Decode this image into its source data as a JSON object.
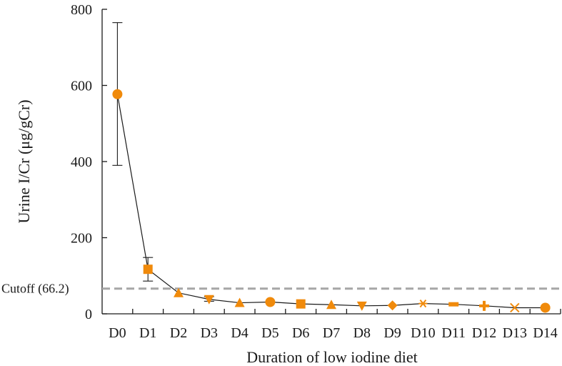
{
  "chart_data": {
    "type": "line",
    "xlabel": "Duration of low iodine diet",
    "ylabel": "Urine I/Cr (μg/gCr)",
    "ylim": [
      0,
      800
    ],
    "yticks": [
      "0",
      "200",
      "400",
      "600",
      "800"
    ],
    "categories": [
      "D0",
      "D1",
      "D2",
      "D3",
      "D4",
      "D5",
      "D6",
      "D7",
      "D8",
      "D9",
      "D10",
      "D11",
      "D12",
      "D13",
      "D14"
    ],
    "values": [
      577,
      117,
      55,
      38,
      29,
      31,
      26,
      24,
      21,
      22,
      27,
      25,
      21,
      16,
      16
    ],
    "error_bars": [
      {
        "low": 390,
        "high": 765
      },
      {
        "low": 86,
        "high": 148
      },
      null,
      {
        "low": 33,
        "high": 45
      },
      null,
      null,
      null,
      null,
      null,
      null,
      null,
      null,
      null,
      null,
      null
    ],
    "markers": [
      "circle",
      "square",
      "triangle-up",
      "triangle-down",
      "triangle-up",
      "circle",
      "square",
      "triangle-up",
      "triangle-down",
      "diamond",
      "asterisk",
      "dash",
      "plus",
      "x",
      "circle"
    ],
    "cutoff": {
      "value": 66.2,
      "label": "Cutoff (66.2)"
    },
    "colors": {
      "marker": "#f08a0b",
      "line": "#1a1a1a",
      "cutoff": "#a6a6a6",
      "axis": "#1a1a1a"
    },
    "grid": false
  }
}
